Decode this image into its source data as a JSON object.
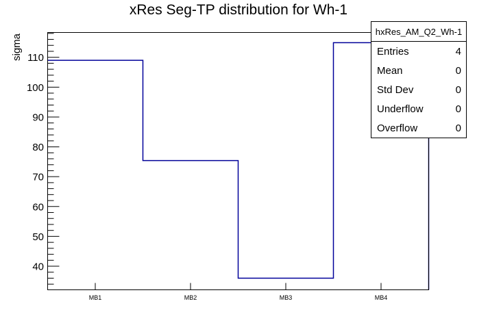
{
  "title": "xRes Seg-TP distribution for Wh-1",
  "chart_data": {
    "type": "step-histogram",
    "categories": [
      "MB1",
      "MB2",
      "MB3",
      "MB4"
    ],
    "values": [
      109.0,
      75.4,
      36.0,
      114.9
    ],
    "xlabel": "",
    "ylabel": "sigma",
    "ylim": [
      32.1,
      118.3
    ],
    "y_major_ticks": [
      40,
      50,
      60,
      70,
      80,
      90,
      100,
      110
    ],
    "y_minor_step": 2,
    "grid": false,
    "legend": "none",
    "line_color": "#000099",
    "frame_color": "#000000",
    "background_color": "#ffffff"
  },
  "stats_box": {
    "header": "hxRes_AM_Q2_Wh-1",
    "rows": [
      {
        "label": "Entries",
        "value": "4"
      },
      {
        "label": "Mean",
        "value": "0"
      },
      {
        "label": "Std Dev",
        "value": "0"
      },
      {
        "label": "Underflow",
        "value": "0"
      },
      {
        "label": "Overflow",
        "value": "0"
      }
    ]
  }
}
